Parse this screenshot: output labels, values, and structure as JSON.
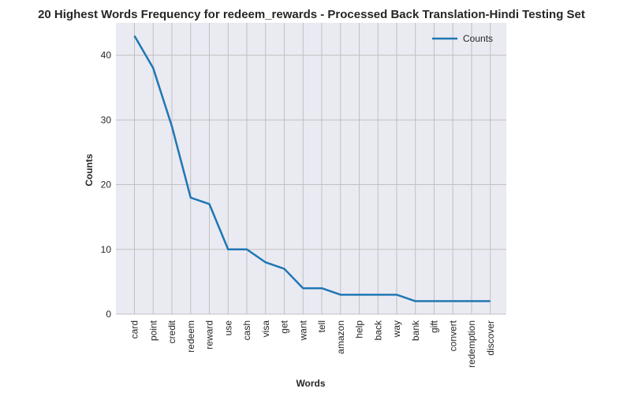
{
  "chart_data": {
    "type": "line",
    "title": "20 Highest Words Frequency for redeem_rewards - Processed Back Translation-Hindi Testing Set",
    "xlabel": "Words",
    "ylabel": "Counts",
    "categories": [
      "card",
      "point",
      "credit",
      "redeem",
      "reward",
      "use",
      "cash",
      "visa",
      "get",
      "want",
      "tell",
      "amazon",
      "help",
      "back",
      "way",
      "bank",
      "gift",
      "convert",
      "redemption",
      "discover"
    ],
    "series": [
      {
        "name": "Counts",
        "values": [
          43,
          38,
          29,
          18,
          17,
          10,
          10,
          8,
          7,
          4,
          4,
          3,
          3,
          3,
          3,
          2,
          2,
          2,
          2,
          2
        ]
      }
    ],
    "ylim": [
      0,
      45
    ],
    "yticks": [
      0,
      10,
      20,
      30,
      40
    ],
    "grid": true,
    "legend_position": "top-right",
    "colors": {
      "line": "#1f77b4",
      "plot_bg": "#eaeaf2",
      "grid": "#c0c0c0"
    }
  }
}
